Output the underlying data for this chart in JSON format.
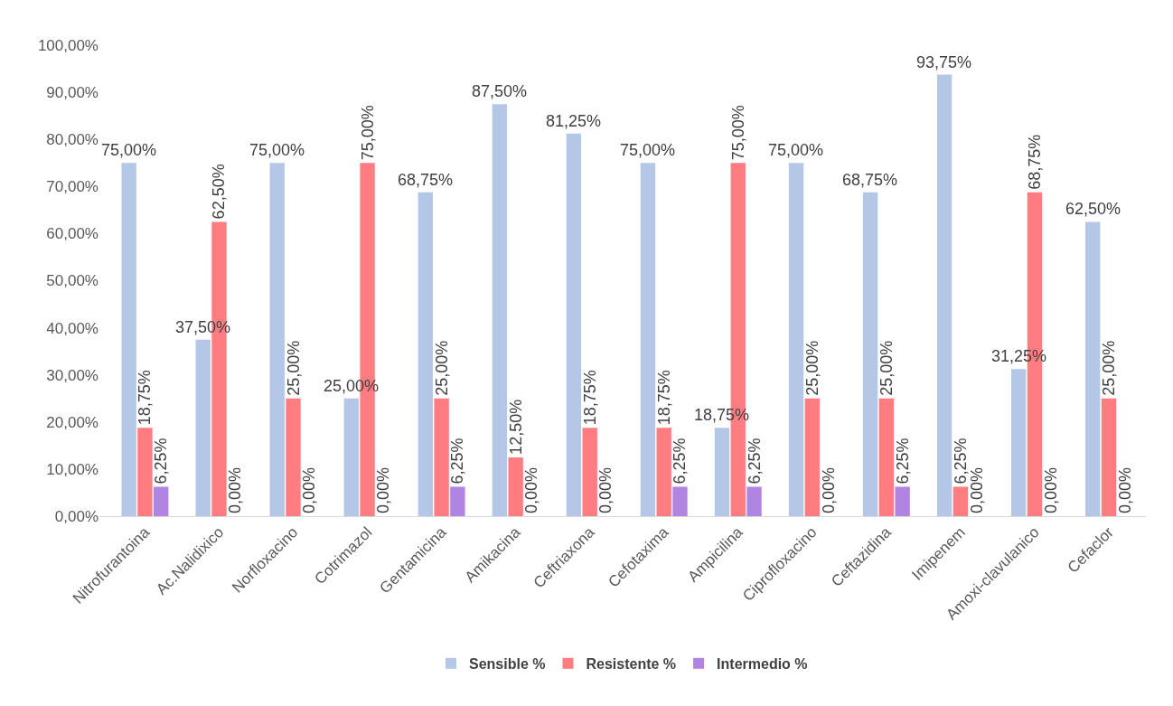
{
  "chart_data": {
    "type": "bar",
    "categories": [
      "Nitrofurantoina",
      "Ac.Nalidixico",
      "Norfloxacino",
      "Cotrimazol",
      "Gentamicina",
      "Amikacina",
      "Ceftriaxona",
      "Cefotaxima",
      "Ampicilina",
      "Ciprofloxacino",
      "Ceftazidina",
      "Imipenem",
      "Amoxi-clavulanico",
      "Cefaclor"
    ],
    "series": [
      {
        "name": "Sensible %",
        "color": "#b4c7e7",
        "values": [
          75,
          37.5,
          75,
          25,
          68.75,
          87.5,
          81.25,
          75,
          18.75,
          75,
          68.75,
          93.75,
          31.25,
          62.5
        ],
        "value_labels": [
          "75,00%",
          "37,50%",
          "75,00%",
          "25,00%",
          "68,75%",
          "87,50%",
          "81,25%",
          "75,00%",
          "18,75%",
          "75,00%",
          "68,75%",
          "93,75%",
          "31,25%",
          "62,50%"
        ]
      },
      {
        "name": "Resistente %",
        "color": "#ff7c80",
        "values": [
          18.75,
          62.5,
          25,
          75,
          25,
          12.5,
          18.75,
          18.75,
          75,
          25,
          25,
          6.25,
          68.75,
          25
        ],
        "value_labels": [
          "18,75%",
          "62,50%",
          "25,00%",
          "75,00%",
          "25,00%",
          "12,50%",
          "18,75%",
          "18,75%",
          "75,00%",
          "25,00%",
          "25,00%",
          "6,25%",
          "68,75%",
          "25,00%"
        ]
      },
      {
        "name": "Intermedio %",
        "color": "#b084e0",
        "values": [
          6.25,
          0,
          0,
          0,
          6.25,
          0,
          0,
          6.25,
          6.25,
          0,
          6.25,
          0,
          0,
          0
        ],
        "value_labels": [
          "6,25%",
          "0,00%",
          "0,00%",
          "0,00%",
          "6,25%",
          "0,00%",
          "0,00%",
          "6,25%",
          "6,25%",
          "0,00%",
          "6,25%",
          "0,00%",
          "0,00%",
          "0,00%"
        ]
      }
    ],
    "ylim": [
      0,
      100
    ],
    "yticks": [
      {
        "value": 0,
        "label": "0,00%"
      },
      {
        "value": 10,
        "label": "10,00%"
      },
      {
        "value": 20,
        "label": "20,00%"
      },
      {
        "value": 30,
        "label": "30,00%"
      },
      {
        "value": 40,
        "label": "40,00%"
      },
      {
        "value": 50,
        "label": "50,00%"
      },
      {
        "value": 60,
        "label": "60,00%"
      },
      {
        "value": 70,
        "label": "70,00%"
      },
      {
        "value": 80,
        "label": "80,00%"
      },
      {
        "value": 90,
        "label": "90,00%"
      },
      {
        "value": 100,
        "label": "100,00%"
      }
    ],
    "grid": false,
    "legend": "bottom"
  }
}
